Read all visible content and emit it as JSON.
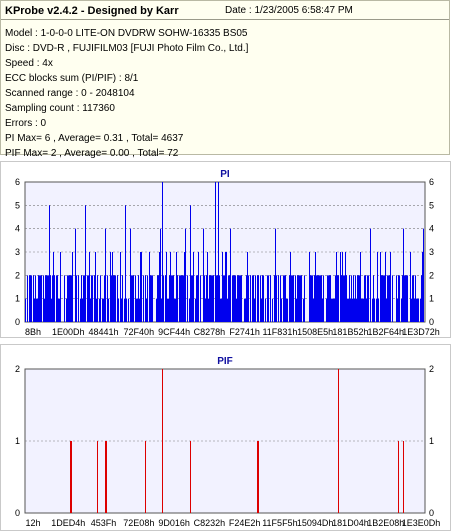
{
  "app": {
    "header": "KProbe v2.4.2 - Designed by Karr",
    "date": "Date : 1/23/2005 6:58:47 PM",
    "info_lines": [
      "Model : 1-0-0-0 LITE-ON DVDRW SOHW-16335 BS05",
      "Disc : DVD-R , FUJIFILM03 [FUJI Photo Film Co., Ltd.]",
      "Speed : 4x",
      "ECC blocks sum (PI/PIF) : 8/1",
      "Scanned range : 0 - 2048104",
      "Sampling count : 117360",
      "Errors : 0",
      "PI Max= 6 , Average= 0.31 , Total= 4637",
      "PIF Max= 2 , Average= 0.00 , Total= 72"
    ]
  },
  "colors": {
    "pi_series": "#0000ee",
    "pif_series": "#dd0000",
    "plot_bg": "#f2f2ff",
    "grid": "#7a7a7a",
    "title": "#1010a0"
  },
  "chart_data": [
    {
      "type": "bar",
      "title": "PI",
      "ylim": [
        0,
        6
      ],
      "yticks": [
        0,
        1,
        2,
        3,
        4,
        5,
        6
      ],
      "grid": true,
      "xtick_labels": [
        "8Bh",
        "1E00Dh",
        "48441h",
        "72F40h",
        "9CF44h",
        "C8278h",
        "F2741h",
        "11F831h",
        "1508E5h",
        "181B52h",
        "1B2F64h",
        "1E3D72h"
      ],
      "series": [
        {
          "values_summary": "dense 0-2 baseline with frequent spikes to 3-4, peaks of 5 and max 6",
          "max": 6,
          "average": 0.31,
          "total": 4637
        }
      ]
    },
    {
      "type": "bar",
      "title": "PIF",
      "ylim": [
        0,
        2
      ],
      "yticks": [
        0,
        1,
        2
      ],
      "grid": true,
      "xtick_labels": [
        "12h",
        "1DED4h",
        "453Fh",
        "72E08h",
        "9D016h",
        "C8232h",
        "F24E2h",
        "11F5F5h",
        "15094Dh",
        "181D04h",
        "1B2E08h",
        "1E3E0Dh"
      ],
      "series": [
        {
          "values_summary": "sparse spikes of 1 and two spikes of 2",
          "max": 2,
          "average": 0.0,
          "total": 72
        }
      ]
    }
  ]
}
